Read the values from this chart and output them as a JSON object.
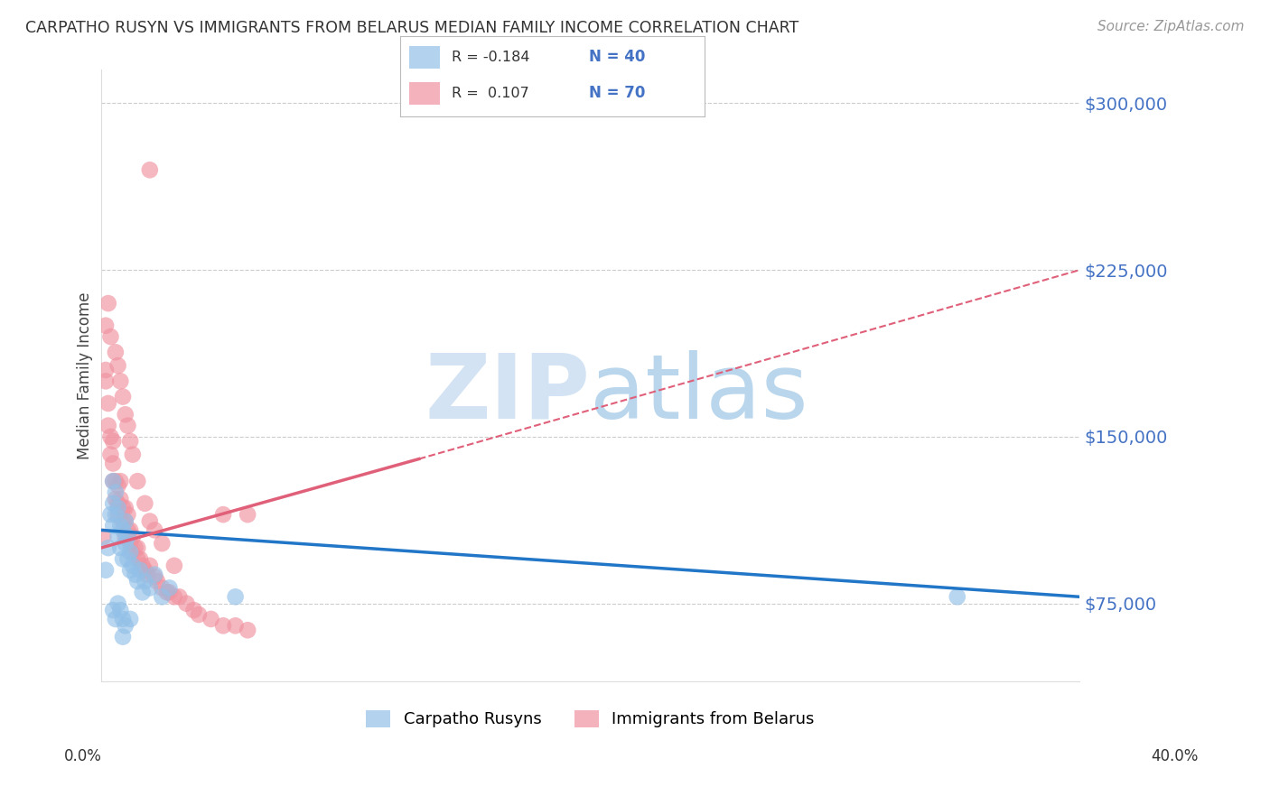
{
  "title": "CARPATHO RUSYN VS IMMIGRANTS FROM BELARUS MEDIAN FAMILY INCOME CORRELATION CHART",
  "source": "Source: ZipAtlas.com",
  "ylabel": "Median Family Income",
  "y_ticks": [
    75000,
    150000,
    225000,
    300000
  ],
  "y_tick_labels": [
    "$75,000",
    "$150,000",
    "$225,000",
    "$300,000"
  ],
  "y_min": 40000,
  "y_max": 315000,
  "x_min": 0.0,
  "x_max": 0.4,
  "blue_color": "#92C0E8",
  "pink_color": "#F093A0",
  "blue_trend_color": "#2176C7",
  "pink_trend_color": "#E0607A",
  "blue_label": "Carpatho Rusyns",
  "pink_label": "Immigrants from Belarus",
  "blue_R": -0.184,
  "blue_N": 40,
  "pink_R": 0.107,
  "pink_N": 70,
  "blue_points_x": [
    0.002,
    0.003,
    0.004,
    0.005,
    0.005,
    0.005,
    0.006,
    0.006,
    0.007,
    0.007,
    0.008,
    0.008,
    0.009,
    0.009,
    0.01,
    0.01,
    0.011,
    0.011,
    0.012,
    0.012,
    0.013,
    0.014,
    0.015,
    0.016,
    0.017,
    0.018,
    0.02,
    0.022,
    0.025,
    0.028,
    0.005,
    0.006,
    0.007,
    0.008,
    0.009,
    0.009,
    0.01,
    0.012,
    0.055,
    0.35
  ],
  "blue_points_y": [
    90000,
    100000,
    115000,
    120000,
    110000,
    130000,
    125000,
    115000,
    118000,
    105000,
    110000,
    100000,
    108000,
    95000,
    112000,
    102000,
    105000,
    95000,
    98000,
    90000,
    92000,
    88000,
    85000,
    90000,
    80000,
    85000,
    82000,
    88000,
    78000,
    82000,
    72000,
    68000,
    75000,
    72000,
    68000,
    60000,
    65000,
    68000,
    78000,
    78000
  ],
  "pink_points_x": [
    0.001,
    0.002,
    0.002,
    0.003,
    0.003,
    0.004,
    0.004,
    0.005,
    0.005,
    0.005,
    0.006,
    0.006,
    0.007,
    0.007,
    0.007,
    0.008,
    0.008,
    0.009,
    0.009,
    0.01,
    0.01,
    0.01,
    0.011,
    0.011,
    0.012,
    0.012,
    0.013,
    0.013,
    0.014,
    0.015,
    0.015,
    0.016,
    0.017,
    0.018,
    0.019,
    0.02,
    0.022,
    0.023,
    0.025,
    0.027,
    0.028,
    0.03,
    0.032,
    0.035,
    0.038,
    0.04,
    0.045,
    0.05,
    0.055,
    0.06,
    0.002,
    0.003,
    0.004,
    0.006,
    0.007,
    0.008,
    0.009,
    0.01,
    0.011,
    0.012,
    0.013,
    0.015,
    0.018,
    0.02,
    0.022,
    0.025,
    0.03,
    0.02,
    0.05,
    0.06
  ],
  "pink_points_y": [
    105000,
    175000,
    180000,
    165000,
    155000,
    150000,
    142000,
    148000,
    138000,
    130000,
    130000,
    122000,
    128000,
    120000,
    115000,
    130000,
    122000,
    118000,
    112000,
    118000,
    112000,
    105000,
    115000,
    108000,
    108000,
    102000,
    105000,
    98000,
    100000,
    100000,
    95000,
    95000,
    92000,
    90000,
    88000,
    92000,
    87000,
    85000,
    82000,
    80000,
    80000,
    78000,
    78000,
    75000,
    72000,
    70000,
    68000,
    65000,
    65000,
    63000,
    200000,
    210000,
    195000,
    188000,
    182000,
    175000,
    168000,
    160000,
    155000,
    148000,
    142000,
    130000,
    120000,
    112000,
    108000,
    102000,
    92000,
    270000,
    115000,
    115000
  ],
  "pink_trend_start_x": 0.0,
  "pink_trend_solid_end_x": 0.13,
  "pink_trend_end_x": 0.4,
  "blue_trend_start_x": 0.0,
  "blue_trend_end_x": 0.4,
  "background_color": "#ffffff",
  "grid_color": "#cccccc",
  "watermark_zip_color": "#C8DCF0",
  "watermark_atlas_color": "#A8CCE8"
}
